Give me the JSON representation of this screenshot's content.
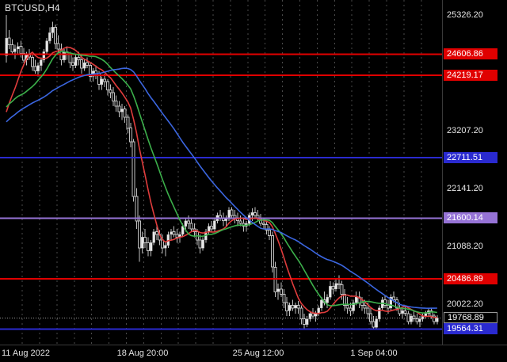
{
  "window": {
    "symbol_label": "BTCUSD,H4"
  },
  "chart_data": {
    "type": "candlestick",
    "symbol": "BTCUSD",
    "timeframe": "H4",
    "title": "BTCUSD,H4",
    "ylim": [
      19280,
      25600
    ],
    "y_tick_values": [
      25326.2,
      23207.2,
      22141.2,
      21088.2,
      20022.2
    ],
    "x_axis_labels": [
      {
        "label": "11 Aug 2022",
        "candle_index": 0,
        "align": "left"
      },
      {
        "label": "18 Aug 20:00",
        "candle_index": 47,
        "align": "center"
      },
      {
        "label": "25 Aug 12:00",
        "candle_index": 87,
        "align": "center"
      },
      {
        "label": "1 Sep 04:00",
        "candle_index": 127,
        "align": "center"
      }
    ],
    "horizontal_lines": [
      {
        "price": 24606.86,
        "color": "#e00000",
        "width": 2
      },
      {
        "price": 24219.17,
        "color": "#e00000",
        "width": 2
      },
      {
        "price": 22711.51,
        "color": "#2a2ad0",
        "width": 2
      },
      {
        "price": 21600.14,
        "color": "#9673d6",
        "width": 2
      },
      {
        "price": 20486.89,
        "color": "#e00000",
        "width": 2
      },
      {
        "price": 19564.31,
        "color": "#2a2ad0",
        "width": 2
      }
    ],
    "current_price": {
      "value": 19768.89,
      "line_color": "#999999",
      "tag_bg": "#000000",
      "tag_border": "#999999"
    },
    "moving_averages": [
      {
        "period": 10,
        "color": "#e03c3c"
      },
      {
        "period": 20,
        "color": "#3cb04b"
      },
      {
        "period": 45,
        "color": "#3b66e0"
      }
    ],
    "separator_every_n_candles": 6,
    "colors": {
      "background": "#000000",
      "bull_body": "#e6e6e6",
      "bear_body": "#000000",
      "candle_outline": "#bfbfbf",
      "wick": "#bfbfbf",
      "separator": "#4a4a4a",
      "axis_text": "#e6e6e6"
    },
    "prehistory_closes": [
      21950,
      22100,
      22300,
      22150,
      22400,
      22600,
      22500,
      22700,
      22900,
      22750,
      22850,
      23000,
      23200,
      23100,
      22950,
      23150,
      23300,
      23200,
      23350,
      23250,
      23100,
      23300,
      23450,
      23350,
      23200,
      23400,
      23300,
      23150,
      23350,
      23500,
      23400,
      23600,
      23800,
      23700,
      23900,
      24100,
      23950,
      23800,
      23650,
      23500,
      23300,
      23150,
      23250,
      23400,
      23200,
      23100,
      23250,
      23500,
      23750,
      23950
    ],
    "candles": [
      [
        24580,
        25326,
        24450,
        24900
      ],
      [
        24900,
        25050,
        24700,
        24780
      ],
      [
        24780,
        24880,
        24600,
        24650
      ],
      [
        24650,
        24780,
        24520,
        24700
      ],
      [
        24700,
        24820,
        24600,
        24750
      ],
      [
        24750,
        24850,
        24550,
        24620
      ],
      [
        24620,
        24720,
        24450,
        24500
      ],
      [
        24500,
        24650,
        24400,
        24600
      ],
      [
        24600,
        24700,
        24500,
        24550
      ],
      [
        24550,
        24620,
        24300,
        24380
      ],
      [
        24380,
        24500,
        24250,
        24300
      ],
      [
        24300,
        24450,
        24200,
        24400
      ],
      [
        24400,
        24550,
        24300,
        24500
      ],
      [
        24500,
        24700,
        24450,
        24650
      ],
      [
        24650,
        24900,
        24600,
        24850
      ],
      [
        24850,
        25100,
        24800,
        25000
      ],
      [
        25000,
        25200,
        24900,
        25100
      ],
      [
        25100,
        25150,
        24700,
        24800
      ],
      [
        24800,
        24950,
        24600,
        24700
      ],
      [
        24700,
        24800,
        24400,
        24500
      ],
      [
        24500,
        24700,
        24450,
        24650
      ],
      [
        24650,
        24750,
        24500,
        24600
      ],
      [
        24600,
        24650,
        24350,
        24450
      ],
      [
        24450,
        24550,
        24300,
        24400
      ],
      [
        24400,
        24600,
        24350,
        24550
      ],
      [
        24550,
        24650,
        24400,
        24500
      ],
      [
        24500,
        24580,
        24250,
        24350
      ],
      [
        24350,
        24500,
        24300,
        24450
      ],
      [
        24450,
        24550,
        24350,
        24400
      ],
      [
        24400,
        24450,
        24100,
        24200
      ],
      [
        24200,
        24350,
        24100,
        24300
      ],
      [
        24300,
        24400,
        24150,
        24250
      ],
      [
        24250,
        24300,
        23950,
        24050
      ],
      [
        24050,
        24200,
        23950,
        24150
      ],
      [
        24150,
        24250,
        24000,
        24100
      ],
      [
        24100,
        24150,
        23850,
        23950
      ],
      [
        23950,
        24050,
        23800,
        23900
      ],
      [
        23900,
        24000,
        23650,
        23750
      ],
      [
        23750,
        23850,
        23550,
        23650
      ],
      [
        23650,
        23750,
        23450,
        23550
      ],
      [
        23550,
        23700,
        23400,
        23600
      ],
      [
        23600,
        23650,
        23350,
        23450
      ],
      [
        23450,
        23500,
        23150,
        23250
      ],
      [
        23250,
        23350,
        22900,
        23000
      ],
      [
        23000,
        23050,
        21900,
        22000
      ],
      [
        22000,
        22150,
        21400,
        21550
      ],
      [
        21550,
        21650,
        20800,
        21050
      ],
      [
        21050,
        21350,
        20950,
        21250
      ],
      [
        21250,
        21400,
        21050,
        21150
      ],
      [
        21150,
        21250,
        20900,
        21000
      ],
      [
        21000,
        21200,
        20900,
        21150
      ],
      [
        21150,
        21400,
        21100,
        21350
      ],
      [
        21350,
        21450,
        21200,
        21300
      ],
      [
        21300,
        21380,
        21100,
        21200
      ],
      [
        21200,
        21300,
        20950,
        21050
      ],
      [
        21050,
        21150,
        20900,
        21100
      ],
      [
        21100,
        21350,
        21050,
        21300
      ],
      [
        21300,
        21400,
        21200,
        21350
      ],
      [
        21350,
        21450,
        21250,
        21300
      ],
      [
        21300,
        21400,
        21150,
        21250
      ],
      [
        21250,
        21350,
        21150,
        21300
      ],
      [
        21300,
        21500,
        21250,
        21450
      ],
      [
        21450,
        21600,
        21350,
        21550
      ],
      [
        21550,
        21650,
        21400,
        21500
      ],
      [
        21500,
        21600,
        21350,
        21400
      ],
      [
        21400,
        21500,
        21250,
        21350
      ],
      [
        21350,
        21400,
        21100,
        21200
      ],
      [
        21200,
        21300,
        20950,
        21050
      ],
      [
        21050,
        21250,
        21000,
        21200
      ],
      [
        21200,
        21400,
        21150,
        21350
      ],
      [
        21350,
        21500,
        21300,
        21450
      ],
      [
        21450,
        21550,
        21350,
        21400
      ],
      [
        21400,
        21600,
        21350,
        21550
      ],
      [
        21550,
        21700,
        21500,
        21650
      ],
      [
        21650,
        21750,
        21550,
        21600
      ],
      [
        21600,
        21700,
        21450,
        21550
      ],
      [
        21550,
        21650,
        21450,
        21600
      ],
      [
        21600,
        21800,
        21550,
        21750
      ],
      [
        21750,
        21800,
        21600,
        21650
      ],
      [
        21650,
        21750,
        21500,
        21600
      ],
      [
        21600,
        21700,
        21450,
        21550
      ],
      [
        21550,
        21650,
        21450,
        21500
      ],
      [
        21500,
        21600,
        21350,
        21450
      ],
      [
        21450,
        21550,
        21350,
        21500
      ],
      [
        21500,
        21700,
        21450,
        21650
      ],
      [
        21650,
        21780,
        21550,
        21700
      ],
      [
        21700,
        21800,
        21600,
        21650
      ],
      [
        21650,
        21750,
        21550,
        21600
      ],
      [
        21600,
        21680,
        21450,
        21500
      ],
      [
        21500,
        21580,
        21400,
        21480
      ],
      [
        21480,
        21550,
        21300,
        21380
      ],
      [
        21380,
        21450,
        21200,
        21280
      ],
      [
        21280,
        21350,
        20600,
        20700
      ],
      [
        20700,
        20800,
        20150,
        20250
      ],
      [
        20250,
        20400,
        20100,
        20300
      ],
      [
        20300,
        20420,
        20150,
        20200
      ],
      [
        20200,
        20300,
        19950,
        20050
      ],
      [
        20050,
        20150,
        19800,
        19900
      ],
      [
        19900,
        20050,
        19800,
        20000
      ],
      [
        20000,
        20100,
        19900,
        19950
      ],
      [
        19950,
        20050,
        19850,
        20000
      ],
      [
        20000,
        20080,
        19850,
        19950
      ],
      [
        19950,
        20000,
        19650,
        19750
      ],
      [
        19750,
        19850,
        19550,
        19650
      ],
      [
        19650,
        19800,
        19600,
        19750
      ],
      [
        19750,
        19900,
        19700,
        19850
      ],
      [
        19850,
        19950,
        19750,
        19800
      ],
      [
        19800,
        19900,
        19700,
        19850
      ],
      [
        19850,
        20000,
        19800,
        19950
      ],
      [
        19950,
        20150,
        19900,
        20100
      ],
      [
        20100,
        20250,
        20000,
        20050
      ],
      [
        20050,
        20200,
        19950,
        20150
      ],
      [
        20150,
        20440,
        20100,
        20350
      ],
      [
        20350,
        20420,
        20200,
        20300
      ],
      [
        20300,
        20500,
        20250,
        20400
      ],
      [
        20400,
        20550,
        20300,
        20380
      ],
      [
        20380,
        20450,
        20100,
        20200
      ],
      [
        20200,
        20300,
        19900,
        20000
      ],
      [
        20000,
        20150,
        19850,
        19950
      ],
      [
        19950,
        20050,
        19800,
        19900
      ],
      [
        19900,
        20100,
        19850,
        20050
      ],
      [
        20050,
        20250,
        20000,
        20150
      ],
      [
        20150,
        20250,
        19950,
        20050
      ],
      [
        20050,
        20150,
        19900,
        20000
      ],
      [
        20000,
        20100,
        19850,
        19950
      ],
      [
        19950,
        20050,
        19750,
        19850
      ],
      [
        19850,
        19950,
        19650,
        19700
      ],
      [
        19700,
        19800,
        19550,
        19600
      ],
      [
        19600,
        19800,
        19550,
        19750
      ],
      [
        19750,
        20000,
        19700,
        19950
      ],
      [
        19950,
        20150,
        19900,
        20100
      ],
      [
        20100,
        20180,
        19950,
        20000
      ],
      [
        20000,
        20100,
        19850,
        19950
      ],
      [
        19950,
        20200,
        19900,
        20150
      ],
      [
        20150,
        20250,
        20050,
        20100
      ],
      [
        20100,
        20150,
        19900,
        19950
      ],
      [
        19950,
        20050,
        19800,
        19850
      ],
      [
        19850,
        19950,
        19750,
        19900
      ],
      [
        19900,
        20000,
        19800,
        19850
      ],
      [
        19850,
        19900,
        19650,
        19700
      ],
      [
        19700,
        19850,
        19650,
        19800
      ],
      [
        19800,
        19900,
        19700,
        19750
      ],
      [
        19750,
        19850,
        19650,
        19700
      ],
      [
        19700,
        19800,
        19600,
        19750
      ],
      [
        19750,
        19850,
        19700,
        19800
      ],
      [
        19800,
        19900,
        19750,
        19850
      ],
      [
        19850,
        19950,
        19800,
        19900
      ],
      [
        19900,
        19950,
        19750,
        19800
      ],
      [
        19800,
        19850,
        19650,
        19700
      ],
      [
        19700,
        19820,
        19650,
        19768.89
      ]
    ]
  }
}
